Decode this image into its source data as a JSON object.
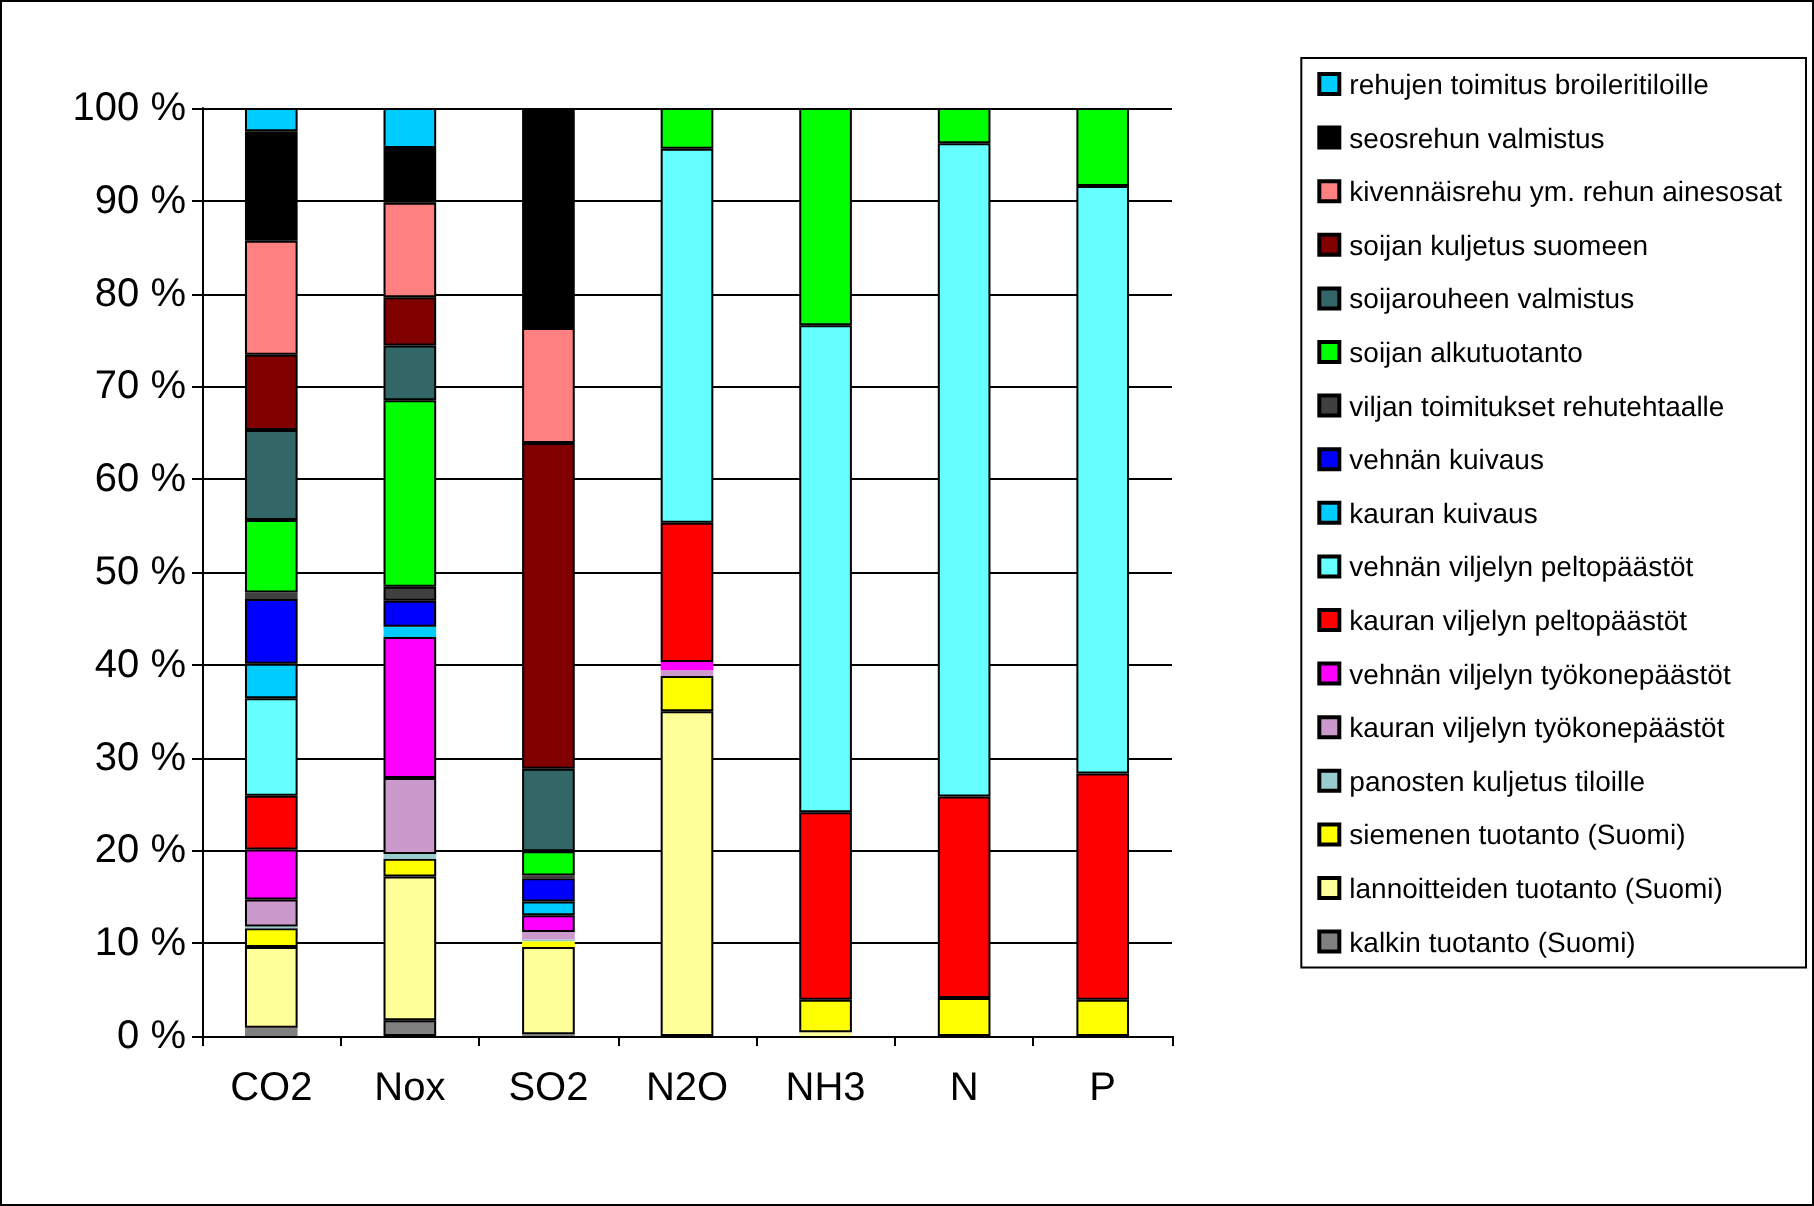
{
  "chart_data": {
    "type": "bar",
    "stacked": true,
    "categories": [
      "CO2",
      "Nox",
      "SO2",
      "N2O",
      "NH3",
      "N",
      "P"
    ],
    "ylim": [
      0,
      100
    ],
    "yticks": [
      {
        "value": 0,
        "label": "0 %"
      },
      {
        "value": 10,
        "label": "10 %"
      },
      {
        "value": 20,
        "label": "20 %"
      },
      {
        "value": 30,
        "label": "30 %"
      },
      {
        "value": 40,
        "label": "40 %"
      },
      {
        "value": 50,
        "label": "50 %"
      },
      {
        "value": 60,
        "label": "60 %"
      },
      {
        "value": 70,
        "label": "70 %"
      },
      {
        "value": 80,
        "label": "80 %"
      },
      {
        "value": 90,
        "label": "90 %"
      },
      {
        "value": 100,
        "label": "100 %"
      }
    ],
    "grid": "y",
    "legend": "right",
    "series": [
      {
        "name": "kalkin tuotanto (Suomi)",
        "color": "#808080",
        "values": [
          0.9,
          1.7,
          0.2,
          0,
          0,
          0,
          0
        ]
      },
      {
        "name": "lannoitteiden tuotanto (Suomi)",
        "color": "#ffff99",
        "values": [
          8.7,
          15.5,
          9.4,
          35.0,
          0.4,
          0,
          0
        ]
      },
      {
        "name": "siemenen tuotanto (Suomi)",
        "color": "#ffff00",
        "values": [
          2.0,
          1.9,
          0.6,
          3.8,
          3.5,
          4.1,
          3.9
        ]
      },
      {
        "name": "panosten kuljetus tiloille",
        "color": "#99cccc",
        "values": [
          0.2,
          0.5,
          0.2,
          0,
          0,
          0,
          0
        ]
      },
      {
        "name": "kauran viljelyn työkonepäästöt",
        "color": "#cc99cc",
        "values": [
          2.9,
          8.2,
          0.8,
          0.6,
          0,
          0,
          0
        ]
      },
      {
        "name": "vehnän viljelyn työkonepäästöt",
        "color": "#ff00ff",
        "values": [
          5.4,
          15.2,
          1.8,
          0.9,
          0,
          0,
          0
        ]
      },
      {
        "name": "kauran viljelyn peltopäästöt",
        "color": "#ff0000",
        "values": [
          5.8,
          0,
          0,
          15.0,
          20.2,
          21.7,
          24.4
        ]
      },
      {
        "name": "vehnän viljelyn peltopäästöt",
        "color": "#66ffff",
        "values": [
          10.5,
          0,
          0,
          40.3,
          52.5,
          70.4,
          63.3
        ]
      },
      {
        "name": "kauran kuivaus",
        "color": "#00ccff",
        "values": [
          3.7,
          1.1,
          1.5,
          0,
          0,
          0,
          0
        ]
      },
      {
        "name": "vehnän kuivaus",
        "color": "#0000ff",
        "values": [
          7.0,
          2.8,
          2.5,
          0,
          0,
          0,
          0
        ]
      },
      {
        "name": "viljan toimitukset rehutehtaalle",
        "color": "#404040",
        "values": [
          0.7,
          1.5,
          0.3,
          0,
          0,
          0,
          0
        ]
      },
      {
        "name": "soijan alkutuotanto",
        "color": "#00ff00",
        "values": [
          7.8,
          20.1,
          2.6,
          4.4,
          23.4,
          3.8,
          8.4
        ]
      },
      {
        "name": "soijarouheen valmistus",
        "color": "#336666",
        "values": [
          9.7,
          5.9,
          8.9,
          0,
          0,
          0,
          0
        ]
      },
      {
        "name": "soijan kuljetus suomeen",
        "color": "#800000",
        "values": [
          8.1,
          5.2,
          35.1,
          0,
          0,
          0,
          0
        ]
      },
      {
        "name": "kivennäisrehu ym. rehun ainesosat",
        "color": "#ff8080",
        "values": [
          12.3,
          10.2,
          12.4,
          0,
          0,
          0,
          0
        ]
      },
      {
        "name": "seosrehun valmistus",
        "color": "#000000",
        "values": [
          11.8,
          5.9,
          23.7,
          0,
          0,
          0,
          0
        ]
      },
      {
        "name": "rehujen toimitus broileritiloille",
        "color": "#00ccff",
        "values": [
          2.5,
          4.3,
          0,
          0,
          0,
          0,
          0
        ]
      }
    ]
  }
}
